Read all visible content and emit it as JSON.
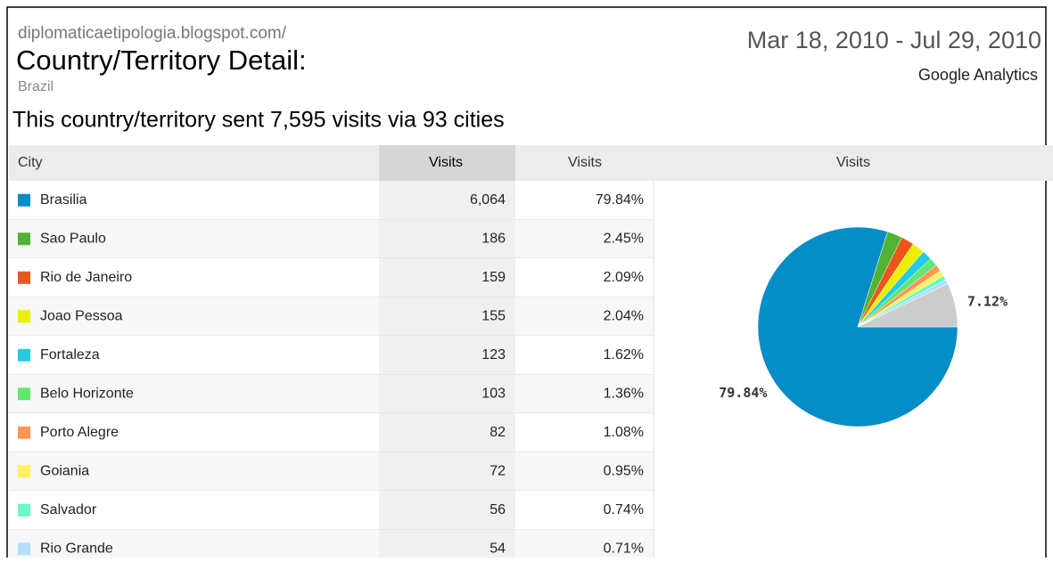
{
  "header": {
    "site": "diplomaticaetipologia.blogspot.com/",
    "title": "Country/Territory Detail:",
    "subtitle": "Brazil",
    "date_range": "Mar 18, 2010 - Jul 29, 2010",
    "product": "Google Analytics"
  },
  "summary": "This country/territory sent 7,595 visits via 93 cities",
  "table": {
    "columns": [
      "City",
      "Visits",
      "Visits",
      "Visits"
    ],
    "rows": [
      [
        "Brasilia",
        "6,064",
        "79.84%"
      ],
      [
        "Sao Paulo",
        "186",
        "2.45%"
      ],
      [
        "Rio de Janeiro",
        "159",
        "2.09%"
      ],
      [
        "Joao Pessoa",
        "155",
        "2.04%"
      ],
      [
        "Fortaleza",
        "123",
        "1.62%"
      ],
      [
        "Belo Horizonte",
        "103",
        "1.36%"
      ],
      [
        "Porto Alegre",
        "82",
        "1.08%"
      ],
      [
        "Goiania",
        "72",
        "0.95%"
      ],
      [
        "Salvador",
        "56",
        "0.74%"
      ],
      [
        "Rio Grande",
        "54",
        "0.71%"
      ]
    ]
  },
  "chart_data": {
    "type": "pie",
    "values": [
      79.84,
      2.45,
      2.09,
      2.04,
      1.62,
      1.36,
      1.08,
      0.95,
      0.74,
      0.71,
      7.12
    ],
    "value_labels": [
      "79.84%",
      null,
      null,
      null,
      null,
      null,
      null,
      null,
      null,
      null,
      "7.12%"
    ],
    "colors": [
      "#058dc7",
      "#50b432",
      "#ed561b",
      "#edef00",
      "#24cbe5",
      "#64e572",
      "#ff9655",
      "#fff263",
      "#6af9c4",
      "#b2deff",
      "#cccccc"
    ]
  }
}
